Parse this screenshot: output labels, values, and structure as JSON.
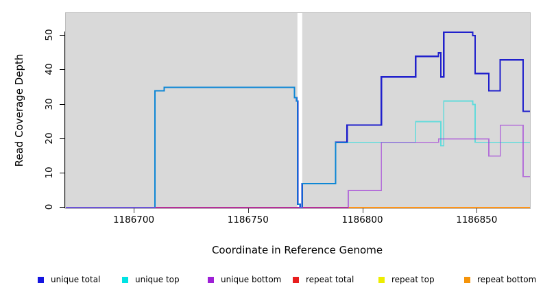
{
  "figure": {
    "background": "#ffffff",
    "panel_background": "#d9d9d9"
  },
  "y_axis": {
    "title": "Read Coverage Depth",
    "ticks": [
      "0",
      "10",
      "20",
      "30",
      "40",
      "50"
    ]
  },
  "x_axis": {
    "title": "Coordinate in Reference Genome",
    "ticks": [
      "1186700",
      "1186750",
      "1186800",
      "1186850"
    ]
  },
  "legend": {
    "position": "bottom",
    "items": [
      {
        "label": "unique total",
        "color": "#1414E0"
      },
      {
        "label": "unique top",
        "color": "#00E3E3"
      },
      {
        "label": "unique bottom",
        "color": "#9E1FD6"
      },
      {
        "label": "repeat total",
        "color": "#E81E1E"
      },
      {
        "label": "repeat top",
        "color": "#EDED00"
      },
      {
        "label": "repeat bottom",
        "color": "#F5940A"
      }
    ]
  },
  "chart_data": {
    "type": "line",
    "subtype": "step-coverage",
    "title": "",
    "xlabel": "Coordinate in Reference Genome",
    "ylabel": "Read Coverage Depth",
    "xlim": [
      1186670,
      1186873
    ],
    "ylim": [
      0,
      56.6
    ],
    "x_tick_values": [
      1186700,
      1186750,
      1186800,
      1186850
    ],
    "y_tick_values": [
      0,
      10,
      20,
      30,
      40,
      50
    ],
    "grid": false,
    "gap_band": {
      "x_start": 1186771.3,
      "x_end": 1186773.4,
      "color": "#ffffff"
    },
    "series": [
      {
        "id": "repeat-top",
        "name": "repeat top",
        "color": "#EDED00",
        "width": 1.5,
        "opacity": 1,
        "x_end": 1186873,
        "points": [
          [
            1186670,
            0
          ]
        ]
      },
      {
        "id": "repeat-total",
        "name": "repeat total",
        "color": "#E02020",
        "width": 1.8,
        "opacity": 1,
        "x_end": 1186793.5,
        "points": [
          [
            1186670,
            0
          ]
        ]
      },
      {
        "id": "repeat-bottom",
        "name": "repeat bottom",
        "color": "#FF9418",
        "width": 2,
        "opacity": 1,
        "x_end": 1186873,
        "points": [
          [
            1186793.5,
            0
          ]
        ]
      },
      {
        "id": "unique-total",
        "name": "unique total",
        "color": "#2020CC",
        "width": 2.2,
        "opacity": 1,
        "x_end": 1186873,
        "points": [
          [
            1186670,
            0
          ],
          [
            1186709,
            34
          ],
          [
            1186713,
            35
          ],
          [
            1186770,
            32
          ],
          [
            1186771,
            31
          ],
          [
            1186771.4,
            1
          ],
          [
            1186772.5,
            0
          ],
          [
            1186773.4,
            7
          ],
          [
            1186788,
            19
          ],
          [
            1186793,
            24
          ],
          [
            1186808,
            38
          ],
          [
            1186823,
            44
          ],
          [
            1186833,
            45
          ],
          [
            1186834,
            38
          ],
          [
            1186835.3,
            51
          ],
          [
            1186848,
            50
          ],
          [
            1186849,
            39
          ],
          [
            1186855,
            34
          ],
          [
            1186860,
            43
          ],
          [
            1186870,
            28
          ]
        ]
      },
      {
        "id": "unique-top",
        "name": "unique top",
        "color": "#00DCDC",
        "width": 1.8,
        "opacity": 0.55,
        "x_end": 1186873,
        "points": [
          [
            1186670,
            0
          ],
          [
            1186709,
            34
          ],
          [
            1186713,
            35
          ],
          [
            1186770,
            32
          ],
          [
            1186771,
            31
          ],
          [
            1186771.4,
            1
          ],
          [
            1186772.5,
            0
          ],
          [
            1186773.4,
            7
          ],
          [
            1186788,
            19
          ],
          [
            1186823,
            25
          ],
          [
            1186834,
            18
          ],
          [
            1186835.3,
            31
          ],
          [
            1186848,
            30
          ],
          [
            1186849,
            19
          ]
        ]
      },
      {
        "id": "unique-bottom",
        "name": "unique bottom",
        "color": "#A038D8",
        "width": 1.7,
        "opacity": 0.65,
        "x_end": 1186873,
        "points": [
          [
            1186670,
            0
          ],
          [
            1186793.5,
            5
          ],
          [
            1186808,
            19
          ],
          [
            1186833,
            20
          ],
          [
            1186855,
            15
          ],
          [
            1186860,
            24
          ],
          [
            1186870,
            9
          ]
        ]
      }
    ]
  }
}
